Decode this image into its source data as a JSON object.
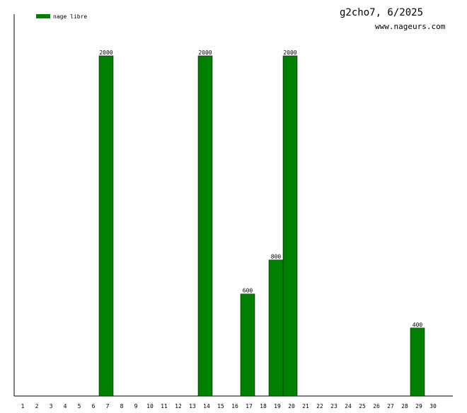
{
  "chart_data": {
    "type": "bar",
    "title": "g2cho7, 6/2025",
    "subtitle": "www.nageurs.com",
    "categories": [
      "1",
      "2",
      "3",
      "4",
      "5",
      "6",
      "7",
      "8",
      "9",
      "10",
      "11",
      "12",
      "13",
      "14",
      "15",
      "16",
      "17",
      "18",
      "19",
      "20",
      "21",
      "22",
      "23",
      "24",
      "25",
      "26",
      "27",
      "28",
      "29",
      "30"
    ],
    "series": [
      {
        "name": "nage libre",
        "color": "#008000",
        "values": [
          null,
          null,
          null,
          null,
          null,
          null,
          2000,
          null,
          null,
          null,
          null,
          null,
          null,
          2000,
          null,
          null,
          600,
          null,
          800,
          2000,
          null,
          null,
          null,
          null,
          null,
          null,
          null,
          null,
          400,
          null
        ]
      }
    ],
    "ylim": [
      0,
      2245
    ],
    "legend": "top-left"
  }
}
